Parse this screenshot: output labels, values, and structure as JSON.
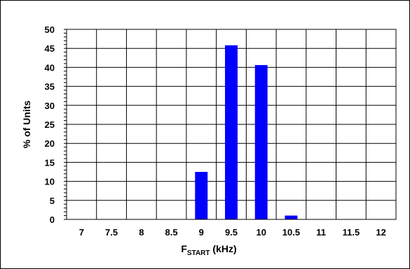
{
  "chart_data": {
    "type": "bar",
    "categories": [
      "7",
      "7.5",
      "8",
      "8.5",
      "9",
      "9.5",
      "10",
      "10.5",
      "11",
      "11.5",
      "12"
    ],
    "values": [
      0,
      0,
      0,
      0,
      12.5,
      45.8,
      40.6,
      1.0,
      0,
      0,
      0
    ],
    "title": "",
    "ylabel": "% of Units",
    "xlabel": {
      "main": "F",
      "subscript": "START",
      "suffix": " (kHz)"
    },
    "ylim": [
      0,
      50
    ],
    "yticks": [
      0,
      5,
      10,
      15,
      20,
      25,
      30,
      35,
      40,
      45,
      50
    ],
    "grid": true,
    "bar_color": "#0000ff"
  }
}
